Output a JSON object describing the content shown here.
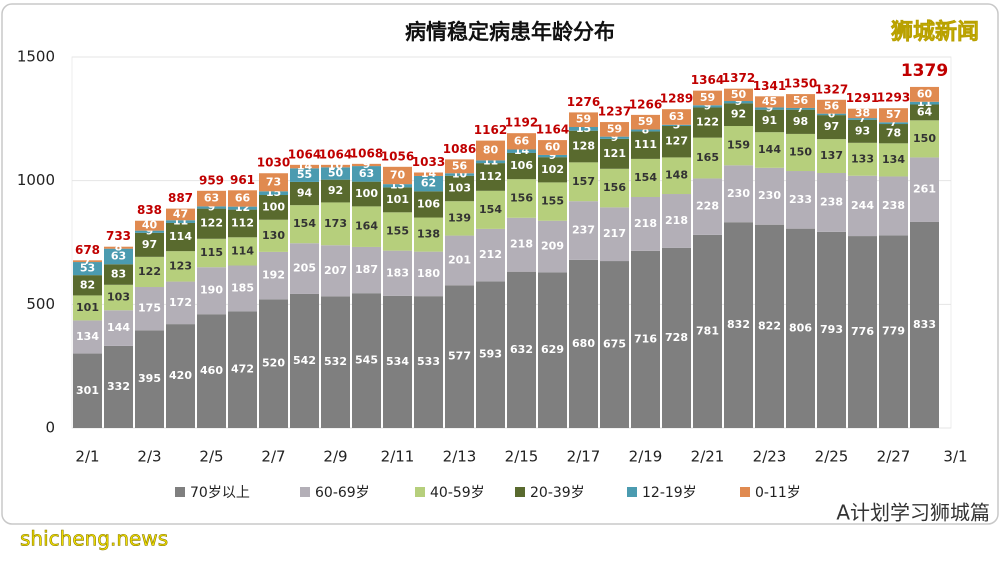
{
  "chart_data": {
    "type": "stacked-bar",
    "title": "病情稳定病患年龄分布",
    "watermark": "狮城新闻",
    "footer_left": "shicheng.news",
    "footer_right": "A计划学习狮城篇",
    "categories": [
      "2/1",
      null,
      "2/3",
      null,
      "2/5",
      null,
      "2/7",
      null,
      "2/9",
      null,
      "2/11",
      null,
      "2/13",
      null,
      "2/15",
      null,
      "2/17",
      null,
      "2/19",
      null,
      "2/21",
      null,
      "2/23",
      null,
      "2/25",
      null,
      "2/27",
      null,
      "3/1"
    ],
    "series": [
      {
        "name": "70岁以上",
        "color": "#7f7f7f",
        "values": [
          301,
          332,
          395,
          420,
          460,
          472,
          520,
          542,
          532,
          545,
          534,
          533,
          577,
          593,
          632,
          629,
          680,
          675,
          716,
          728,
          781,
          832,
          822,
          806,
          793,
          776,
          779,
          833,
          null
        ]
      },
      {
        "name": "60-69岁",
        "color": "#b3afb7",
        "values": [
          134,
          144,
          175,
          172,
          190,
          185,
          192,
          205,
          207,
          187,
          183,
          180,
          201,
          212,
          218,
          209,
          237,
          217,
          218,
          218,
          228,
          230,
          230,
          233,
          238,
          244,
          238,
          261,
          null
        ]
      },
      {
        "name": "40-59岁",
        "color": "#b6cf7c",
        "values": [
          101,
          103,
          122,
          123,
          115,
          114,
          130,
          154,
          173,
          164,
          155,
          138,
          139,
          154,
          156,
          155,
          157,
          156,
          154,
          148,
          165,
          159,
          144,
          150,
          137,
          133,
          134,
          150,
          null
        ]
      },
      {
        "name": "20-39岁",
        "color": "#596a2e",
        "values": [
          82,
          83,
          97,
          114,
          122,
          112,
          100,
          94,
          92,
          100,
          101,
          106,
          103,
          112,
          106,
          102,
          128,
          121,
          111,
          127,
          122,
          92,
          91,
          98,
          97,
          93,
          78,
          64,
          null
        ]
      },
      {
        "name": "12-19岁",
        "color": "#4b9bb0",
        "values": [
          53,
          63,
          9,
          11,
          9,
          12,
          15,
          55,
          50,
          63,
          13,
          62,
          10,
          11,
          14,
          9,
          15,
          9,
          8,
          5,
          9,
          9,
          9,
          7,
          6,
          7,
          7,
          11,
          null
        ]
      },
      {
        "name": "0-11岁",
        "color": "#e08a50",
        "values": [
          7,
          8,
          40,
          47,
          63,
          66,
          73,
          14,
          10,
          9,
          70,
          14,
          56,
          80,
          66,
          60,
          59,
          59,
          59,
          63,
          59,
          50,
          45,
          56,
          56,
          38,
          57,
          60,
          null
        ]
      }
    ],
    "totals": [
      678,
      733,
      838,
      887,
      959,
      961,
      1030,
      1064,
      1064,
      1068,
      1056,
      1033,
      1086,
      1162,
      1192,
      1164,
      1276,
      1237,
      1266,
      1289,
      1364,
      1372,
      1341,
      1350,
      1327,
      1291,
      1293,
      1379,
      null
    ],
    "totals_color": "#c00000",
    "ylim": [
      0,
      1500
    ],
    "yticks": [
      0,
      500,
      1000,
      1500
    ],
    "grid": true
  }
}
